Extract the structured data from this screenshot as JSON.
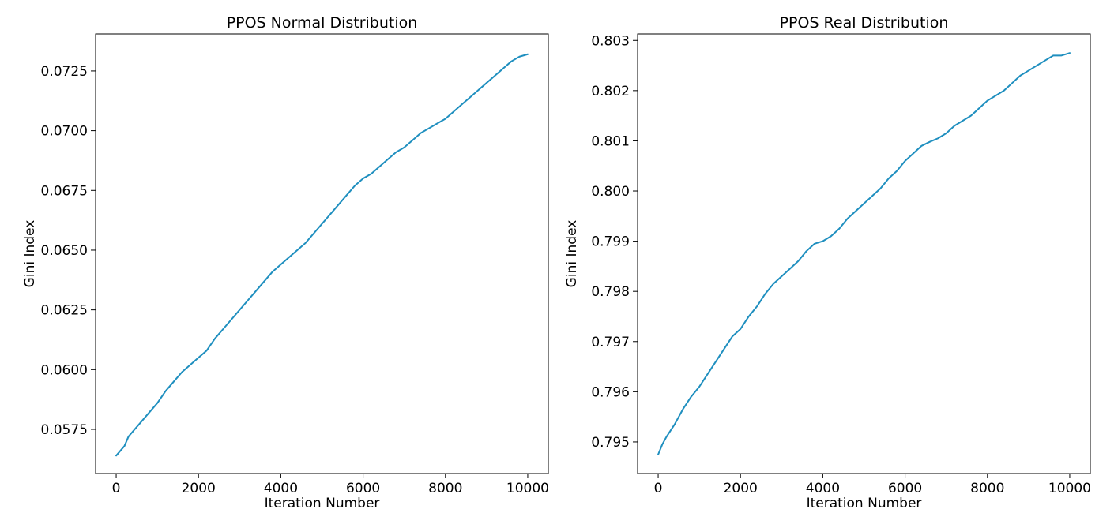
{
  "chart_data": [
    {
      "type": "line",
      "title": "PPOS Normal Distribution",
      "xlabel": "Iteration Number",
      "ylabel": "Gini Index",
      "xlim": [
        -500,
        10500
      ],
      "ylim": [
        0.05565,
        0.07405
      ],
      "xticks": [
        "0",
        "2000",
        "4000",
        "6000",
        "8000",
        "10000"
      ],
      "yticks": [
        "0.0575",
        "0.0600",
        "0.0625",
        "0.0650",
        "0.0675",
        "0.0700",
        "0.0725"
      ],
      "grid": false,
      "line_color": "#1f8fbf",
      "series": [
        {
          "x": [
            0,
            200,
            300,
            400,
            600,
            800,
            1000,
            1200,
            1400,
            1600,
            1800,
            2000,
            2200,
            2400,
            2600,
            2800,
            3000,
            3200,
            3400,
            3600,
            3800,
            4000,
            4200,
            4400,
            4600,
            4800,
            5000,
            5200,
            5400,
            5600,
            5800,
            6000,
            6200,
            6400,
            6600,
            6800,
            7000,
            7200,
            7400,
            7600,
            7800,
            8000,
            8200,
            8400,
            8600,
            8800,
            9000,
            9200,
            9400,
            9600,
            9800,
            10000
          ],
          "y": [
            0.0564,
            0.0568,
            0.0572,
            0.0574,
            0.0578,
            0.0582,
            0.0586,
            0.0591,
            0.0595,
            0.0599,
            0.0602,
            0.0605,
            0.0608,
            0.0613,
            0.0617,
            0.0621,
            0.0625,
            0.0629,
            0.0633,
            0.0637,
            0.0641,
            0.0644,
            0.0647,
            0.065,
            0.0653,
            0.0657,
            0.0661,
            0.0665,
            0.0669,
            0.0673,
            0.0677,
            0.068,
            0.0682,
            0.0685,
            0.0688,
            0.0691,
            0.0693,
            0.0696,
            0.0699,
            0.0701,
            0.0703,
            0.0705,
            0.0708,
            0.0711,
            0.0714,
            0.0717,
            0.072,
            0.0723,
            0.0726,
            0.0729,
            0.0731,
            0.0732
          ]
        }
      ]
    },
    {
      "type": "line",
      "title": "PPOS Real Distribution",
      "xlabel": "Iteration Number",
      "ylabel": "Gini Index",
      "xlim": [
        -500,
        10500
      ],
      "ylim": [
        0.79437,
        0.80313
      ],
      "xticks": [
        "0",
        "2000",
        "4000",
        "6000",
        "8000",
        "10000"
      ],
      "yticks": [
        "0.795",
        "0.796",
        "0.797",
        "0.798",
        "0.799",
        "0.800",
        "0.801",
        "0.802",
        "0.803"
      ],
      "grid": false,
      "line_color": "#1f8fbf",
      "series": [
        {
          "x": [
            0,
            100,
            200,
            400,
            600,
            800,
            1000,
            1200,
            1400,
            1600,
            1800,
            2000,
            2200,
            2400,
            2600,
            2800,
            3000,
            3200,
            3400,
            3600,
            3800,
            4000,
            4200,
            4400,
            4600,
            4800,
            5000,
            5200,
            5400,
            5600,
            5800,
            6000,
            6200,
            6400,
            6600,
            6800,
            7000,
            7200,
            7400,
            7600,
            7800,
            8000,
            8200,
            8400,
            8600,
            8800,
            9000,
            9200,
            9400,
            9600,
            9800,
            10000
          ],
          "y": [
            0.79475,
            0.79495,
            0.7951,
            0.79535,
            0.79565,
            0.7959,
            0.7961,
            0.79635,
            0.7966,
            0.79685,
            0.7971,
            0.79725,
            0.7975,
            0.7977,
            0.79795,
            0.79815,
            0.7983,
            0.79845,
            0.7986,
            0.7988,
            0.79895,
            0.799,
            0.7991,
            0.79925,
            0.79945,
            0.7996,
            0.79975,
            0.7999,
            0.80005,
            0.80025,
            0.8004,
            0.8006,
            0.80075,
            0.8009,
            0.80098,
            0.80105,
            0.80115,
            0.8013,
            0.8014,
            0.8015,
            0.80165,
            0.8018,
            0.8019,
            0.802,
            0.80215,
            0.8023,
            0.8024,
            0.8025,
            0.8026,
            0.8027,
            0.8027,
            0.80275
          ]
        }
      ]
    }
  ]
}
